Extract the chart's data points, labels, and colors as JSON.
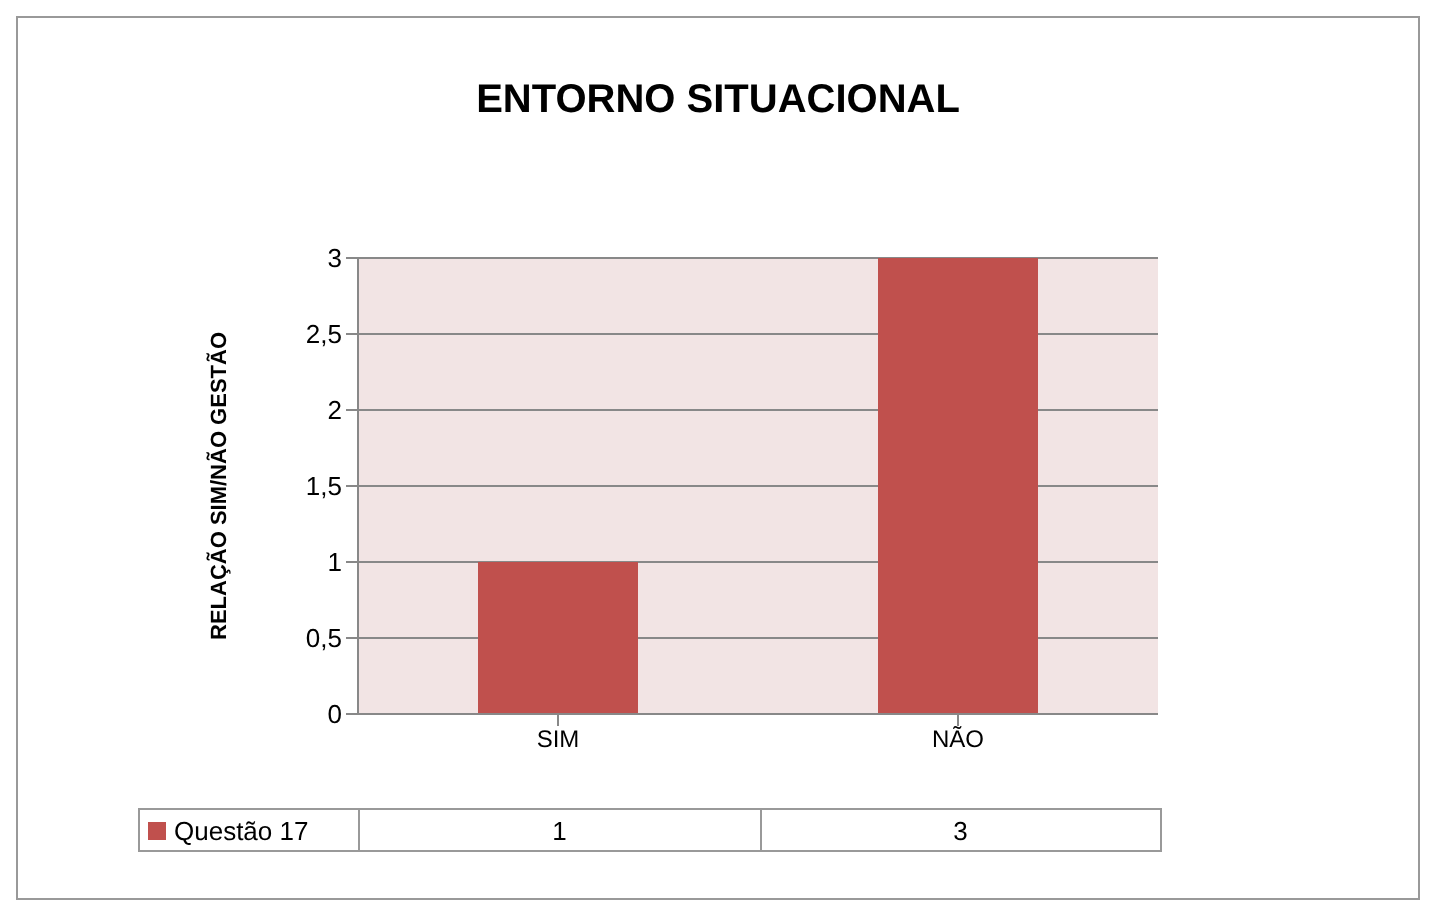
{
  "chart_data": {
    "type": "bar",
    "title": "ENTORNO SITUACIONAL",
    "ylabel": "RELAÇÃO SIM/NÃO GESTÃO",
    "categories": [
      "SIM",
      "NÃO"
    ],
    "series": [
      {
        "name": "Questão 17",
        "color": "#c0504d",
        "values": [
          1,
          3
        ]
      }
    ],
    "ylim": [
      0,
      3
    ],
    "yticks": [
      0,
      {
        "value": 0.5,
        "label": "0,5"
      },
      1,
      {
        "value": 1.5,
        "label": "1,5"
      },
      2,
      {
        "value": 2.5,
        "label": "2,5"
      },
      3
    ],
    "grid": "y",
    "legend": "bottom",
    "data_labels": true
  }
}
